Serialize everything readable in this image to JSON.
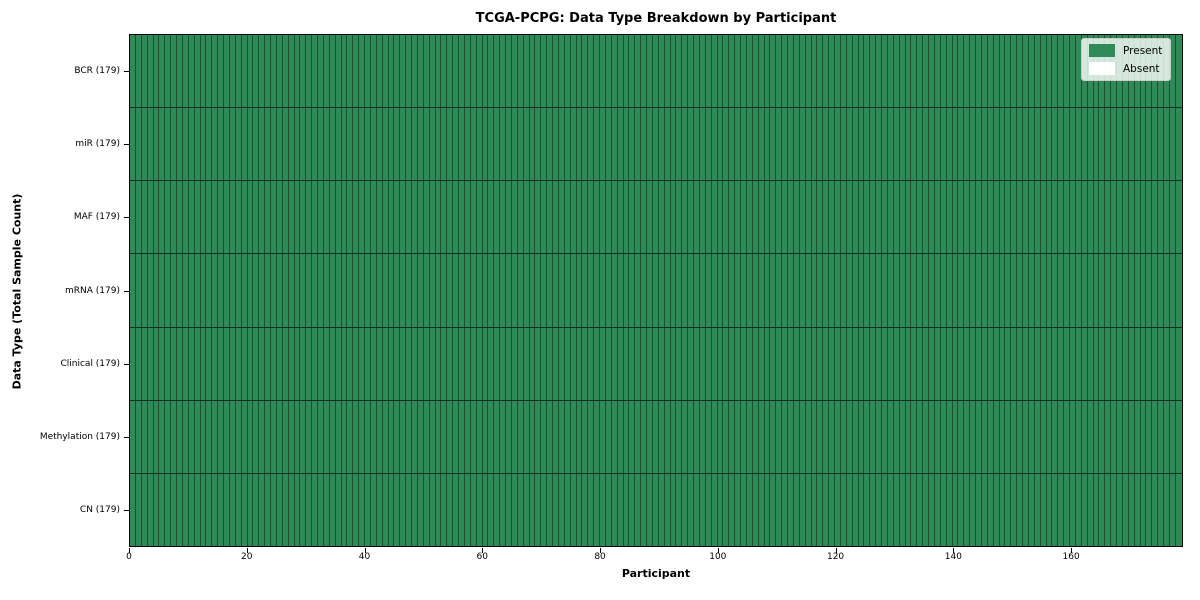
{
  "title": "TCGA-PCPG: Data Type Breakdown by Participant",
  "chart_data": {
    "type": "heatmap",
    "title": "TCGA-PCPG: Data Type Breakdown by Participant",
    "xlabel": "Participant",
    "ylabel": "Data Type (Total Sample Count)",
    "n_participants": 179,
    "xlim": [
      0,
      179
    ],
    "x_ticks": [
      0,
      20,
      40,
      60,
      80,
      100,
      120,
      140,
      160
    ],
    "rows": [
      {
        "label": "BCR (179)",
        "name": "BCR",
        "total_samples": 179,
        "present_count": 179,
        "absent_count": 0
      },
      {
        "label": "miR (179)",
        "name": "miR",
        "total_samples": 179,
        "present_count": 179,
        "absent_count": 0
      },
      {
        "label": "MAF (179)",
        "name": "MAF",
        "total_samples": 179,
        "present_count": 179,
        "absent_count": 0
      },
      {
        "label": "mRNA (179)",
        "name": "mRNA",
        "total_samples": 179,
        "present_count": 179,
        "absent_count": 0
      },
      {
        "label": "Clinical (179)",
        "name": "Clinical",
        "total_samples": 179,
        "present_count": 179,
        "absent_count": 0
      },
      {
        "label": "Methylation (179)",
        "name": "Methylation",
        "total_samples": 179,
        "present_count": 179,
        "absent_count": 0
      },
      {
        "label": "CN (179)",
        "name": "CN",
        "total_samples": 179,
        "present_count": 179,
        "absent_count": 0
      }
    ],
    "legend": {
      "position": "upper right",
      "entries": [
        {
          "label": "Present",
          "color": "#2e8b57"
        },
        {
          "label": "Absent",
          "color": "#ffffff"
        }
      ]
    },
    "colors": {
      "present": "#2e8b57",
      "absent": "#ffffff",
      "cell_edge": "rgba(0,0,0,0.42)",
      "row_divider": "rgba(0,0,0,0.65)",
      "spine": "#000000",
      "figure_background": "#ffffff"
    },
    "grid": false
  }
}
